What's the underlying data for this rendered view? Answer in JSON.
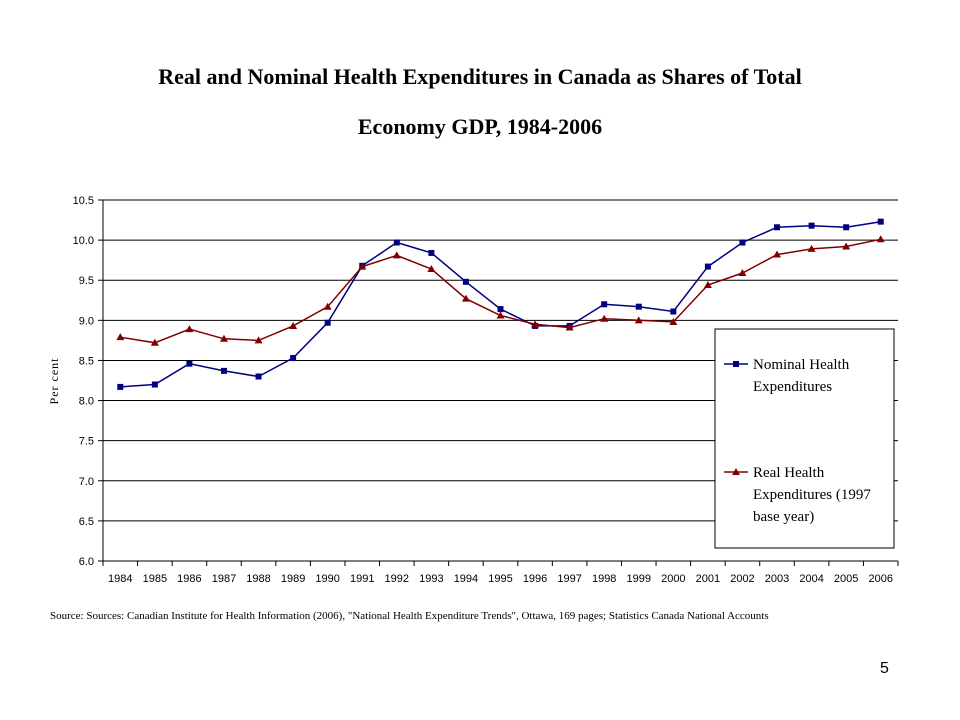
{
  "slide": {
    "title_line1": "Real and Nominal Health Expenditures in Canada as Shares of Total",
    "title_line2": "Economy GDP, 1984-2006",
    "page_number": "5"
  },
  "chart_data": {
    "type": "line",
    "title": "Real and Nominal Health Expenditures in Canada as Shares of Total Economy GDP, 1984-2006",
    "xlabel": "",
    "ylabel": "Per cent",
    "categories": [
      "1984",
      "1985",
      "1986",
      "1987",
      "1988",
      "1989",
      "1990",
      "1991",
      "1992",
      "1993",
      "1994",
      "1995",
      "1996",
      "1997",
      "1998",
      "1999",
      "2000",
      "2001",
      "2002",
      "2003",
      "2004",
      "2005",
      "2006"
    ],
    "ylim": [
      6.0,
      10.5
    ],
    "yticks": [
      "6.0",
      "6.5",
      "7.0",
      "7.5",
      "8.0",
      "8.5",
      "9.0",
      "9.5",
      "10.0",
      "10.5"
    ],
    "grid": "horizontal",
    "legend_position": "right",
    "series": [
      {
        "name_line1": "Nominal Health",
        "name_line2": "Expenditures",
        "name_line3": "",
        "color": "#000080",
        "marker": "square",
        "values": [
          8.17,
          8.2,
          8.46,
          8.37,
          8.3,
          8.53,
          8.97,
          9.68,
          9.97,
          9.84,
          9.48,
          9.14,
          8.93,
          8.93,
          9.2,
          9.17,
          9.11,
          9.67,
          9.97,
          10.16,
          10.18,
          10.16,
          10.23
        ]
      },
      {
        "name_line1": "Real Health",
        "name_line2": "Expenditures (1997",
        "name_line3": "base year)",
        "color": "#800000",
        "marker": "triangle",
        "values": [
          8.79,
          8.72,
          8.89,
          8.77,
          8.75,
          8.93,
          9.17,
          9.67,
          9.81,
          9.64,
          9.27,
          9.06,
          8.95,
          8.91,
          9.02,
          9.0,
          8.98,
          9.44,
          9.59,
          9.82,
          9.89,
          9.92,
          10.01
        ]
      }
    ],
    "source": "Source: Sources: Canadian Institute for Health Information (2006), \"National Health Expenditure Trends\", Ottawa, 169 pages; Statistics Canada National Accounts"
  }
}
